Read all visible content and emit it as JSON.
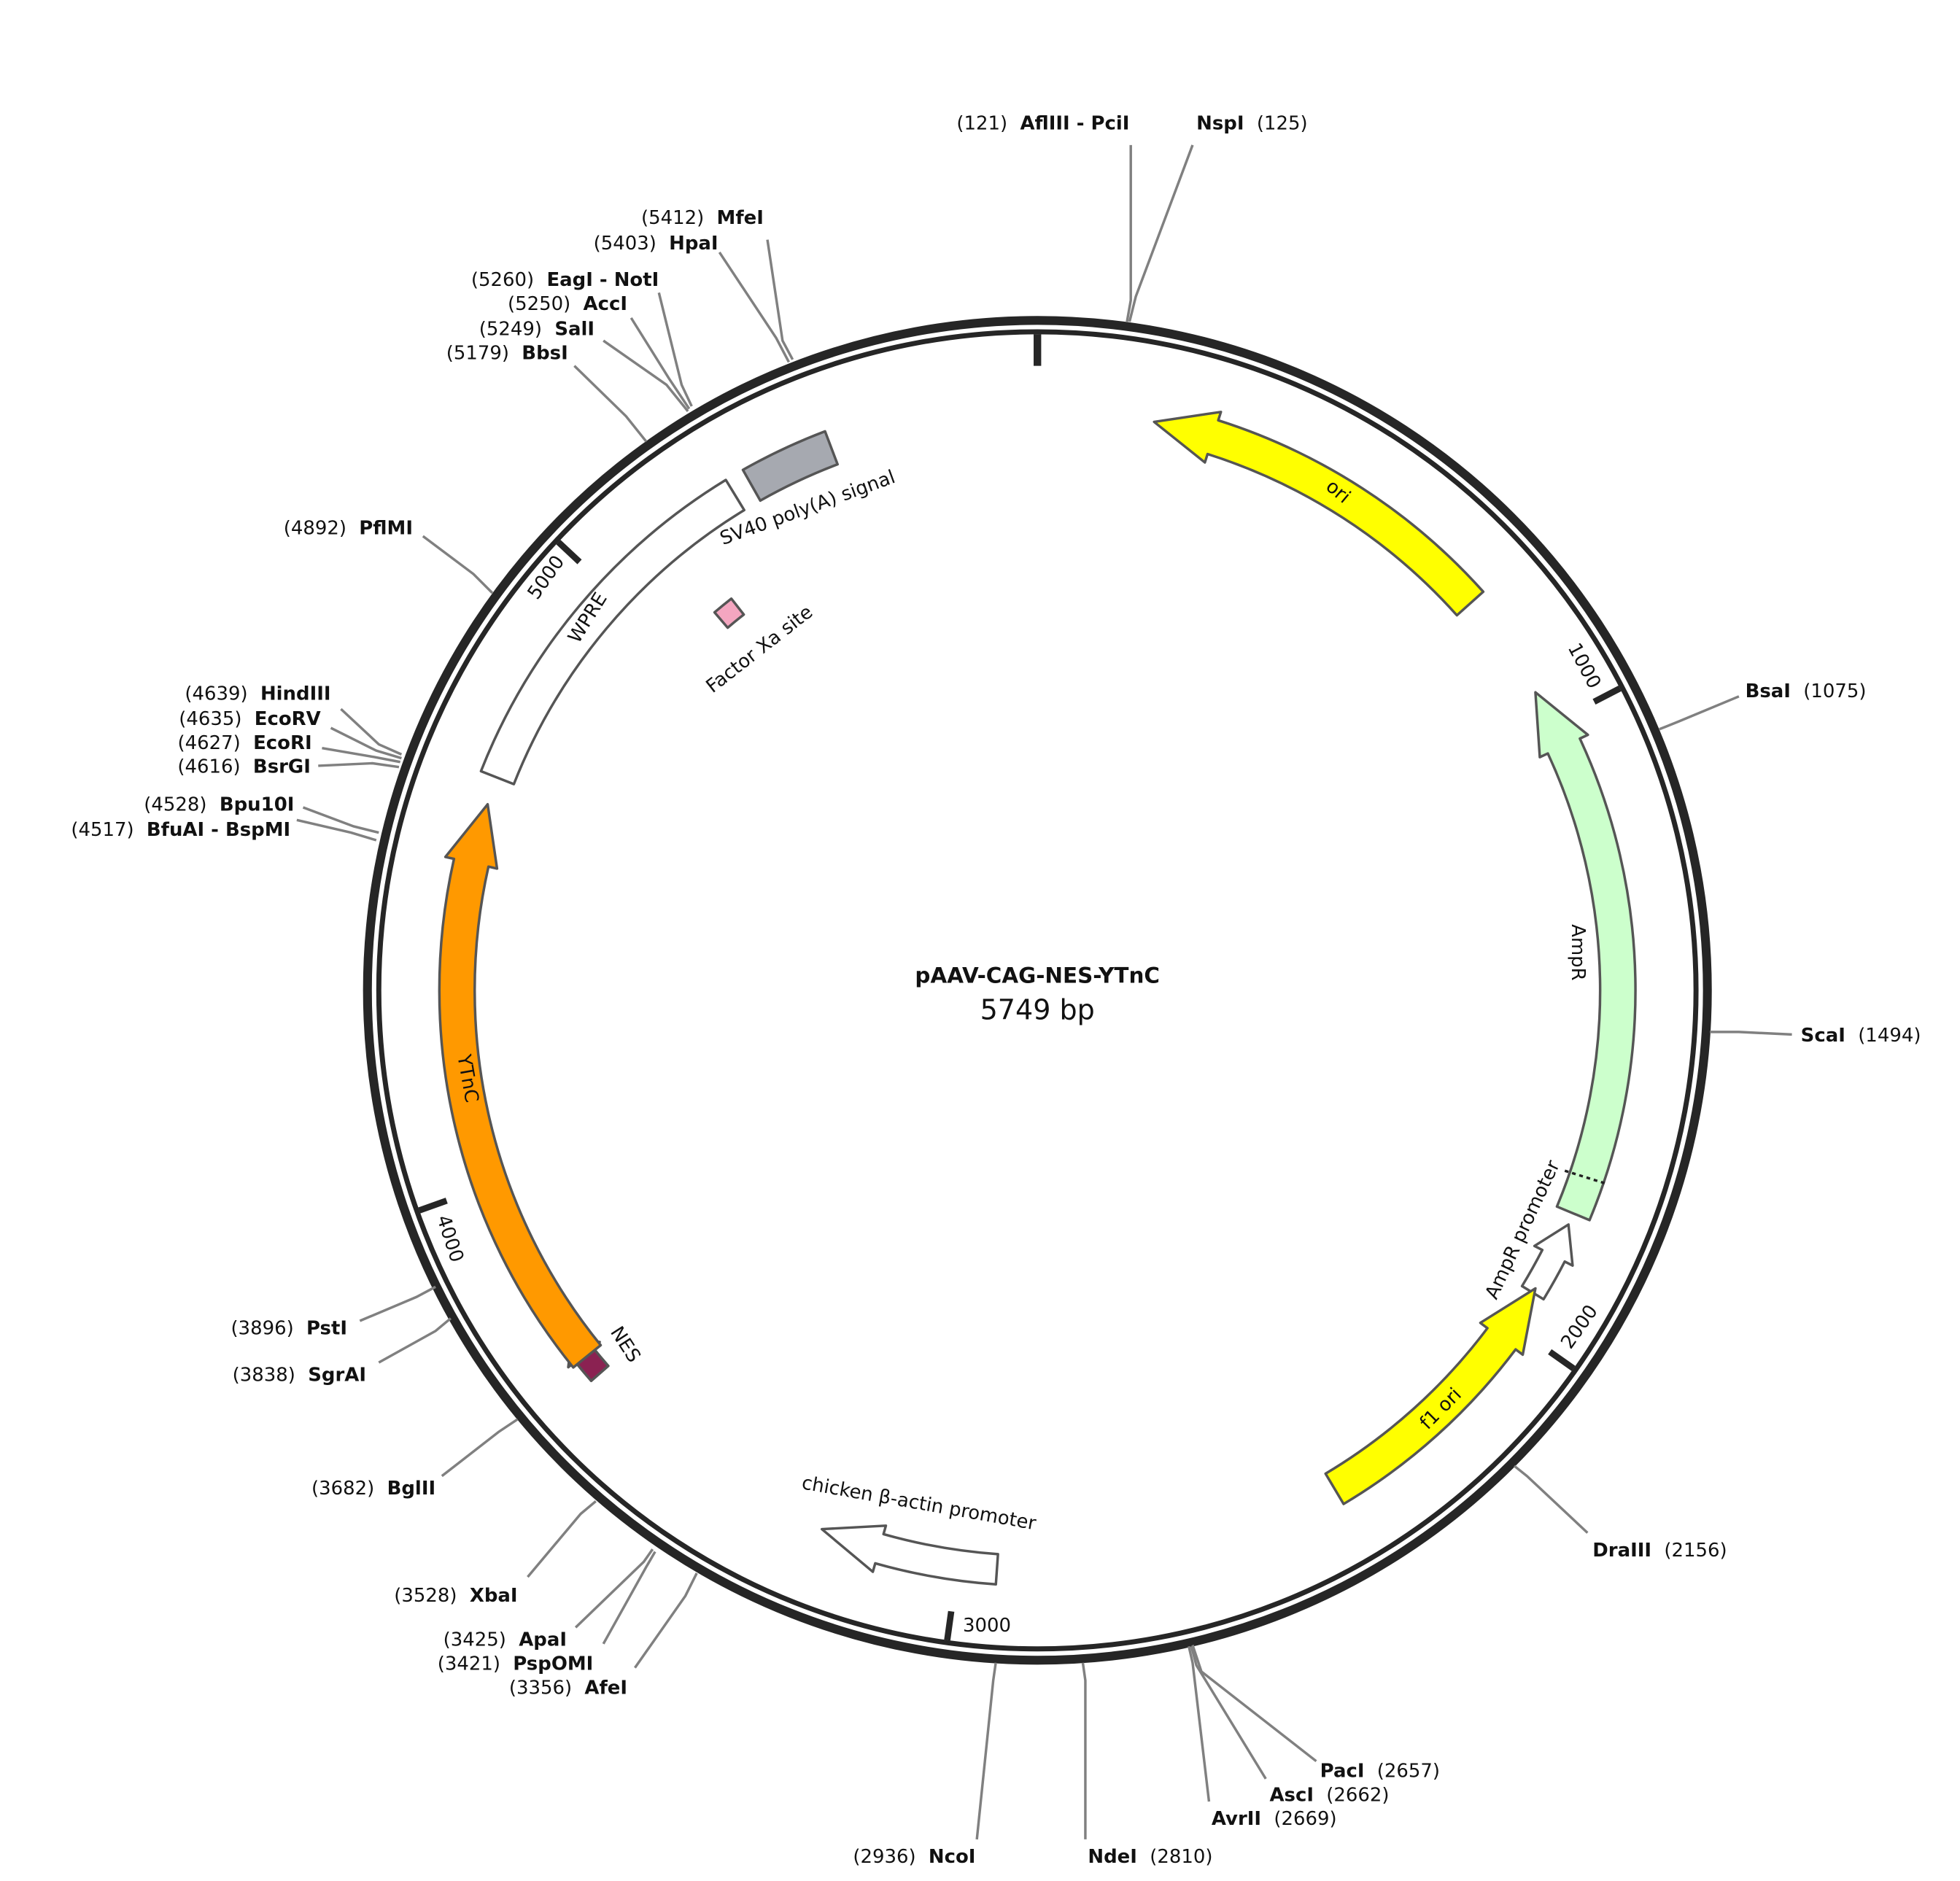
{
  "plasmid": {
    "name": "pAAV-CAG-NES-YTnC",
    "length": "5749 bp"
  },
  "ruler": [
    "1000",
    "2000",
    "3000",
    "4000",
    "5000"
  ],
  "features": [
    {
      "label": "ori"
    },
    {
      "label": "AmpR"
    },
    {
      "label": "AmpR promoter"
    },
    {
      "label": "f1 ori"
    },
    {
      "label": "chicken β-actin promoter"
    },
    {
      "label": "NES"
    },
    {
      "label": "YTnC"
    },
    {
      "label": "WPRE"
    },
    {
      "label": "SV40 poly(A) signal"
    },
    {
      "label": "Factor Xa site"
    }
  ],
  "sites": [
    {
      "position": "(121)",
      "name": "AflIII - PciI"
    },
    {
      "position": "(125)",
      "name": "NspI"
    },
    {
      "position": "(5412)",
      "name": "MfeI"
    },
    {
      "position": "(5403)",
      "name": "HpaI"
    },
    {
      "position": "(5260)",
      "name": "EagI - NotI"
    },
    {
      "position": "(5250)",
      "name": "AccI"
    },
    {
      "position": "(5249)",
      "name": "SalI"
    },
    {
      "position": "(5179)",
      "name": "BbsI"
    },
    {
      "position": "(4892)",
      "name": "PflMI"
    },
    {
      "position": "(4639)",
      "name": "HindIII"
    },
    {
      "position": "(4635)",
      "name": "EcoRV"
    },
    {
      "position": "(4627)",
      "name": "EcoRI"
    },
    {
      "position": "(4616)",
      "name": "BsrGI"
    },
    {
      "position": "(4528)",
      "name": "Bpu10I"
    },
    {
      "position": "(4517)",
      "name": "BfuAI - BspMI"
    },
    {
      "position": "(3896)",
      "name": "PstI"
    },
    {
      "position": "(3838)",
      "name": "SgrAI"
    },
    {
      "position": "(3682)",
      "name": "BglII"
    },
    {
      "position": "(3528)",
      "name": "XbaI"
    },
    {
      "position": "(3425)",
      "name": "ApaI"
    },
    {
      "position": "(3421)",
      "name": "PspOMI"
    },
    {
      "position": "(3356)",
      "name": "AfeI"
    },
    {
      "position": "(2936)",
      "name": "NcoI"
    },
    {
      "position": "(2810)",
      "name": "NdeI"
    },
    {
      "position": "(2669)",
      "name": "AvrII"
    },
    {
      "position": "(2662)",
      "name": "AscI"
    },
    {
      "position": "(2657)",
      "name": "PacI"
    },
    {
      "position": "(2156)",
      "name": "DraIII"
    },
    {
      "position": "(1494)",
      "name": "ScaI"
    },
    {
      "position": "(1075)",
      "name": "BsaI"
    }
  ]
}
